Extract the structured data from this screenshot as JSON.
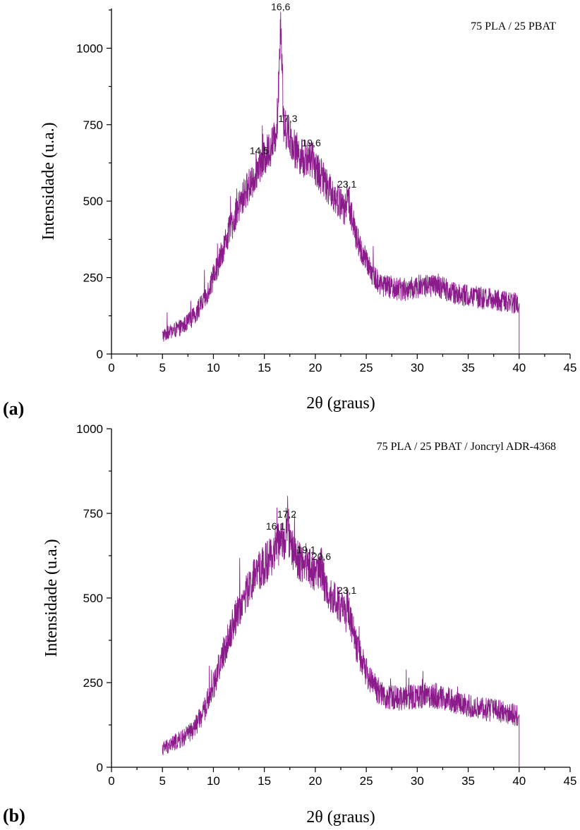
{
  "chart_data": [
    {
      "type": "line",
      "panel_label": "(a)",
      "xlabel": "2θ (graus)",
      "ylabel": "Intensidade (u.a.)",
      "xlim": [
        0,
        45
      ],
      "ylim": [
        0,
        1130
      ],
      "xticks": [
        0,
        5,
        10,
        15,
        20,
        25,
        30,
        35,
        40,
        45
      ],
      "yticks": [
        0,
        250,
        500,
        750,
        1000
      ],
      "grid": false,
      "legend_position": "top-right",
      "color": "#8b1a8b",
      "series": [
        {
          "name": "75 PLA / 25 PBAT",
          "x": [
            5,
            6,
            7,
            8,
            9,
            10,
            11,
            12,
            13,
            14,
            14.5,
            15,
            15.5,
            16,
            16.3,
            16.6,
            16.9,
            17.3,
            18,
            19,
            19.6,
            20,
            21,
            22,
            23,
            23.1,
            24,
            25,
            26,
            27,
            28,
            29,
            30,
            31,
            32,
            33,
            34,
            35,
            36,
            37,
            38,
            39,
            39.9,
            40
          ],
          "y": [
            60,
            75,
            90,
            120,
            170,
            250,
            350,
            440,
            520,
            580,
            620,
            640,
            670,
            700,
            780,
            1110,
            740,
            730,
            670,
            630,
            645,
            610,
            560,
            510,
            470,
            530,
            380,
            300,
            240,
            220,
            215,
            210,
            220,
            225,
            220,
            210,
            195,
            190,
            185,
            180,
            175,
            170,
            165,
            0
          ]
        }
      ],
      "annotations": [
        {
          "label": "14,5",
          "x": 14.5,
          "y": 640
        },
        {
          "label": "16,6",
          "x": 16.6,
          "y": 1110
        },
        {
          "label": "17,3",
          "x": 17.3,
          "y": 745
        },
        {
          "label": "19,6",
          "x": 19.6,
          "y": 665
        },
        {
          "label": "23,1",
          "x": 23.1,
          "y": 530
        }
      ]
    },
    {
      "type": "line",
      "panel_label": "(b)",
      "xlabel": "2θ (graus)",
      "ylabel": "Intensidade (u.a.)",
      "xlim": [
        0,
        45
      ],
      "ylim": [
        0,
        1000
      ],
      "xticks": [
        0,
        5,
        10,
        15,
        20,
        25,
        30,
        35,
        40,
        45
      ],
      "yticks": [
        0,
        250,
        500,
        750,
        1000
      ],
      "grid": false,
      "legend_position": "top-right",
      "color": "#8b1a8b",
      "series": [
        {
          "name": "75 PLA / 25 PBAT / Joncryl ADR-4368",
          "x": [
            5,
            6,
            7,
            8,
            9,
            10,
            11,
            12,
            13,
            14,
            15,
            16,
            16.1,
            16.5,
            17,
            17.2,
            17.5,
            18,
            19,
            19.1,
            20,
            20.6,
            21,
            22,
            23,
            23.1,
            24,
            25,
            26,
            27,
            28,
            29,
            30,
            31,
            32,
            33,
            34,
            35,
            36,
            37,
            38,
            39,
            39.9,
            40
          ],
          "y": [
            55,
            70,
            85,
            110,
            160,
            240,
            340,
            430,
            500,
            560,
            600,
            630,
            680,
            650,
            680,
            720,
            660,
            620,
            600,
            610,
            570,
            590,
            530,
            490,
            450,
            490,
            360,
            280,
            230,
            210,
            205,
            205,
            210,
            215,
            210,
            200,
            190,
            180,
            175,
            170,
            165,
            160,
            155,
            0
          ]
        }
      ],
      "annotations": [
        {
          "label": "16,1",
          "x": 16.1,
          "y": 690
        },
        {
          "label": "17,2",
          "x": 17.2,
          "y": 725
        },
        {
          "label": "19,1",
          "x": 19.1,
          "y": 620
        },
        {
          "label": "20,6",
          "x": 20.6,
          "y": 600
        },
        {
          "label": "23,1",
          "x": 23.1,
          "y": 500
        }
      ]
    }
  ]
}
